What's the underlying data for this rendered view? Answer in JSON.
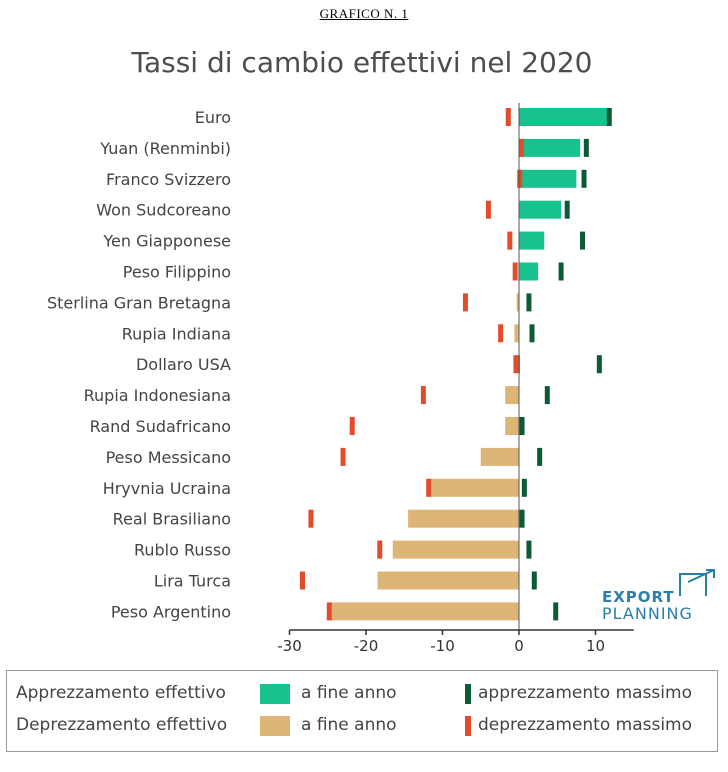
{
  "header": {
    "label": "GRAFICO N. 1"
  },
  "chart_data": {
    "type": "bar",
    "title": "Tassi di cambio effettivi nel 2020",
    "categories": [
      "Euro",
      "Yuan (Renminbi)",
      "Franco Svizzero",
      "Won Sudcoreano",
      "Yen Giapponese",
      "Peso Filippino",
      "Sterlina Gran Bretagna",
      "Rupia Indiana",
      "Dollaro USA",
      "Rupia Indonesiana",
      "Rand Sudafricano",
      "Peso Messicano",
      "Hryvnia Ucraina",
      "Real Brasiliano",
      "Rublo Russo",
      "Lira Turca",
      "Peso Argentino"
    ],
    "series": [
      {
        "name": "a fine anno",
        "values": [
          11.5,
          8.0,
          7.5,
          5.5,
          3.3,
          2.5,
          -0.3,
          -0.6,
          0.0,
          -1.8,
          -1.8,
          -5.0,
          -11.5,
          -14.5,
          -16.5,
          -18.5,
          -24.5
        ]
      },
      {
        "name": "apprezzamento massimo",
        "values": [
          11.8,
          8.8,
          8.5,
          6.3,
          8.3,
          5.5,
          1.3,
          1.7,
          10.5,
          3.7,
          0.4,
          2.7,
          0.7,
          0.4,
          1.3,
          2.0,
          4.8
        ]
      },
      {
        "name": "deprezzamento massimo",
        "values": [
          -1.4,
          0.3,
          0.1,
          -4.0,
          -1.2,
          -0.5,
          -7.0,
          -2.4,
          -0.4,
          -12.5,
          -21.8,
          -23.0,
          -11.8,
          -27.2,
          -18.2,
          -28.3,
          -24.8
        ]
      }
    ],
    "colors": {
      "appreciation": "#19c18f",
      "depreciation": "#ddb577",
      "max_appreciation": "#0d5a37",
      "max_depreciation": "#e24b2c"
    },
    "xlim": [
      -30,
      15
    ],
    "xticks": [
      "-30",
      "-20",
      "-10",
      "0",
      "10"
    ],
    "grid": false
  },
  "legend": {
    "apprezzamento_label": "Apprezzamento effettivo",
    "deprezzamento_label": "Deprezzamento effettivo",
    "fine_anno_1": "a fine anno",
    "fine_anno_2": "a fine anno",
    "max_apprezzamento": "apprezzamento massimo",
    "max_deprezzamento": "deprezzamento massimo"
  },
  "logo": {
    "line1": "EXPORT",
    "line2": "PLANNING"
  }
}
